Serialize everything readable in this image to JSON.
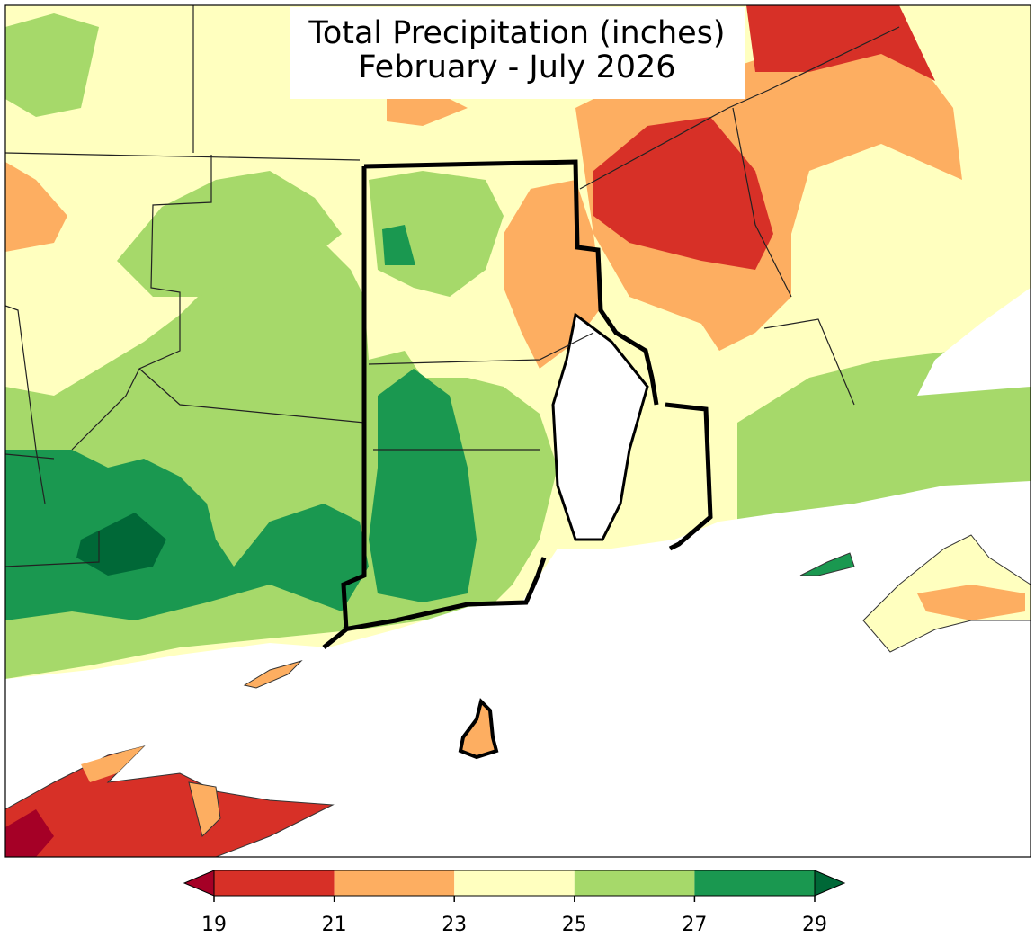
{
  "map": {
    "title": [
      "Total Precipitation (inches)",
      "February - July 2026"
    ],
    "colorbar": {
      "ticks": [
        19,
        21,
        23,
        25,
        27,
        29
      ],
      "colors": [
        "#d73027",
        "#fdae61",
        "#ffffbf",
        "#a6d96a",
        "#1a9850"
      ],
      "under_color": "#a50026",
      "over_color": "#006837"
    }
  }
}
